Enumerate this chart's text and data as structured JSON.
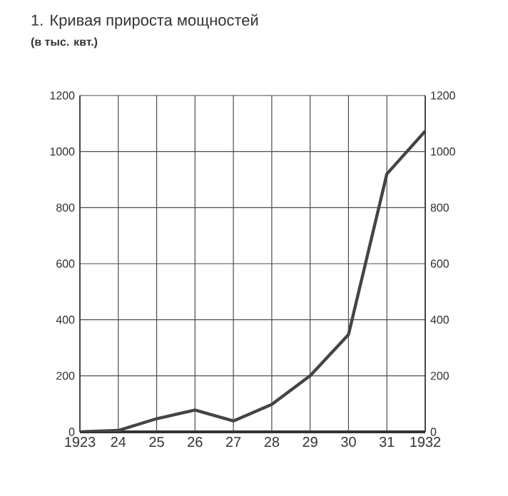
{
  "chart_data": {
    "type": "line",
    "title": "1. Кривая прироста мощностей",
    "subtitle": "(в тыс. квт.)",
    "categories": [
      "1923",
      "24",
      "25",
      "26",
      "27",
      "28",
      "29",
      "30",
      "31",
      "1932"
    ],
    "series": [
      {
        "color": "#444444",
        "values": [
          0,
          5,
          47,
          78,
          39,
          98,
          200,
          347,
          920,
          1073
        ]
      }
    ],
    "ylim": [
      0,
      1200
    ],
    "yticks": [
      0,
      200,
      400,
      600,
      800,
      1000,
      1200
    ],
    "y2lim": [
      0,
      1200
    ],
    "y2ticks": [
      0,
      200,
      400,
      600,
      800,
      1000,
      1200
    ],
    "grid": true,
    "marker": "none",
    "line_style": "solid"
  }
}
